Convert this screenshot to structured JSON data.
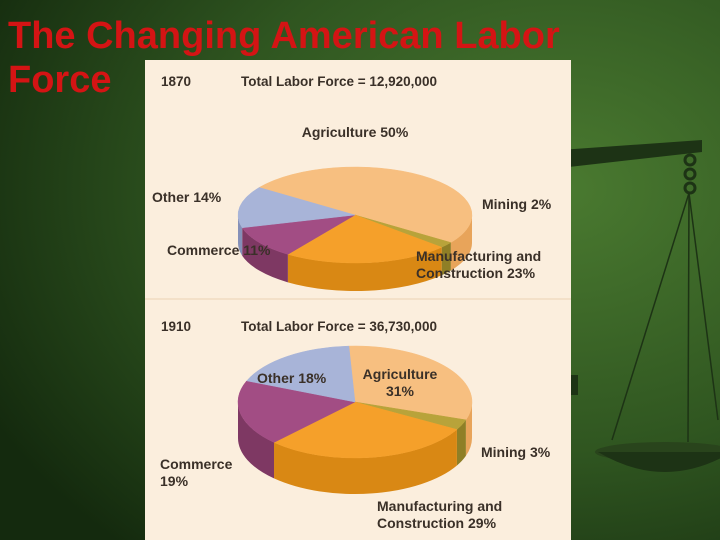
{
  "slide": {
    "title": "The Changing American Labor Force"
  },
  "colors": {
    "title": "#d41414",
    "background_dark": "#1e3a14",
    "background_light": "#3f6b2a",
    "panel": "#fbeedd"
  },
  "decoration": {
    "icon": "scales-of-justice-icon"
  },
  "chart_data": [
    {
      "type": "pie",
      "year": "1870",
      "total_label": "Total Labor Force = 12,920,000",
      "total": 12920000,
      "slices": [
        {
          "name": "Agriculture",
          "value": 50,
          "label_lines": [
            "Agriculture 50%"
          ],
          "color": "#f7bf80",
          "side": "#e8a45a"
        },
        {
          "name": "Mining",
          "value": 2,
          "label_lines": [
            "Mining 2%"
          ],
          "color": "#b8a33a",
          "side": "#8f7f26"
        },
        {
          "name": "Manufacturing and Construction",
          "value": 23,
          "label_lines": [
            "Manufacturing and",
            "Construction 23%"
          ],
          "color": "#f5a02a",
          "side": "#d98814"
        },
        {
          "name": "Commerce",
          "value": 11,
          "label_lines": [
            "Commerce 11%"
          ],
          "color": "#a24d84",
          "side": "#7e3863"
        },
        {
          "name": "Other",
          "value": 14,
          "label_lines": [
            "Other 14%"
          ],
          "color": "#a8b4d8",
          "side": "#8590b8"
        }
      ]
    },
    {
      "type": "pie",
      "year": "1910",
      "total_label": "Total Labor Force = 36,730,000",
      "total": 36730000,
      "slices": [
        {
          "name": "Agriculture",
          "value": 31,
          "label_lines": [
            "Agriculture",
            "31%"
          ],
          "color": "#f7bf80",
          "side": "#e8a45a"
        },
        {
          "name": "Mining",
          "value": 3,
          "label_lines": [
            "Mining 3%"
          ],
          "color": "#b8a33a",
          "side": "#8f7f26"
        },
        {
          "name": "Manufacturing and Construction",
          "value": 29,
          "label_lines": [
            "Manufacturing and",
            "Construction 29%"
          ],
          "color": "#f5a02a",
          "side": "#d98814"
        },
        {
          "name": "Commerce",
          "value": 19,
          "label_lines": [
            "Commerce",
            "19%"
          ],
          "color": "#a24d84",
          "side": "#7e3863"
        },
        {
          "name": "Other",
          "value": 18,
          "label_lines": [
            "Other 18%"
          ],
          "color": "#a8b4d8",
          "side": "#8590b8"
        }
      ]
    }
  ]
}
